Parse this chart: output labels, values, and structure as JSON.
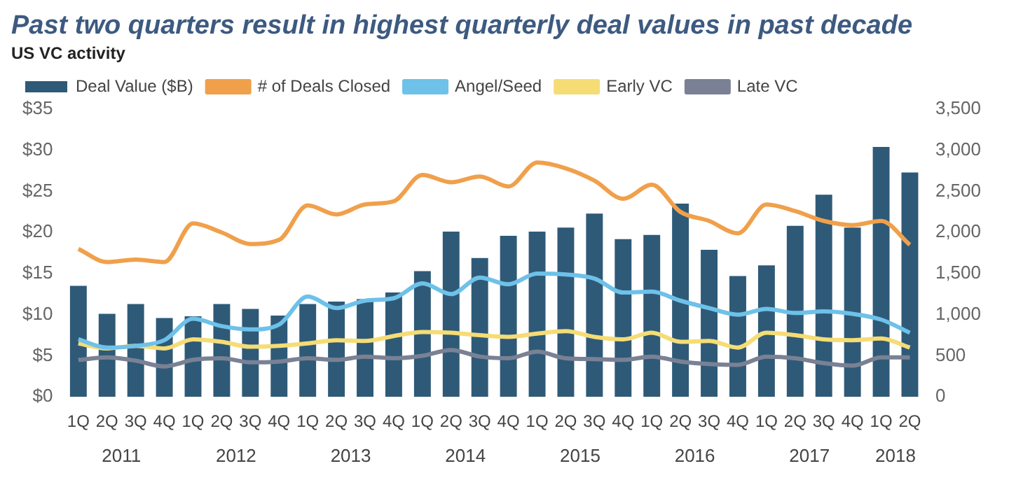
{
  "chart_data": {
    "type": "bar",
    "title": "Past two quarters result in highest quarterly deal values in past decade",
    "subtitle": "US VC activity",
    "categories": [
      "1Q",
      "2Q",
      "3Q",
      "4Q",
      "1Q",
      "2Q",
      "3Q",
      "4Q",
      "1Q",
      "2Q",
      "3Q",
      "4Q",
      "1Q",
      "2Q",
      "3Q",
      "4Q",
      "1Q",
      "2Q",
      "3Q",
      "4Q",
      "1Q",
      "2Q",
      "3Q",
      "4Q",
      "1Q",
      "2Q",
      "3Q",
      "4Q",
      "1Q",
      "2Q"
    ],
    "annotations": [
      "2011",
      "2012",
      "2013",
      "2014",
      "2015",
      "2016",
      "2017",
      "2018"
    ],
    "series": [
      {
        "name": "Deal Value ($B)",
        "color": "#2e5a78",
        "values": [
          13.5,
          10.1,
          11.3,
          9.6,
          9.8,
          11.3,
          10.7,
          9.9,
          11.3,
          11.6,
          11.9,
          12.7,
          15.3,
          20.1,
          16.9,
          19.6,
          20.1,
          20.6,
          22.3,
          19.2,
          19.7,
          23.5,
          17.9,
          14.7,
          16.0,
          20.8,
          24.6,
          20.6,
          30.4,
          27.3
        ]
      },
      {
        "name": "# of Deals Closed",
        "type": "line",
        "axis": "y2",
        "color": "#f0a04b",
        "values": [
          1800,
          1640,
          1670,
          1640,
          2110,
          2000,
          1860,
          1910,
          2330,
          2220,
          2340,
          2380,
          2700,
          2610,
          2680,
          2560,
          2850,
          2780,
          2630,
          2410,
          2580,
          2250,
          2140,
          1990,
          2340,
          2260,
          2140,
          2090,
          2140,
          1850
        ]
      },
      {
        "name": "Angel/Seed",
        "type": "line",
        "axis": "y2",
        "color": "#6ec1e8",
        "values": [
          700,
          600,
          620,
          690,
          950,
          860,
          820,
          880,
          1220,
          1080,
          1170,
          1200,
          1380,
          1250,
          1450,
          1370,
          1500,
          1490,
          1440,
          1270,
          1280,
          1170,
          1080,
          1000,
          1070,
          1020,
          1040,
          1010,
          940,
          780
        ]
      },
      {
        "name": "Early VC",
        "type": "line",
        "axis": "y2",
        "color": "#f5dc74",
        "values": [
          650,
          590,
          620,
          590,
          700,
          670,
          610,
          620,
          650,
          690,
          680,
          740,
          790,
          780,
          750,
          730,
          770,
          800,
          730,
          700,
          780,
          670,
          680,
          600,
          780,
          750,
          700,
          690,
          710,
          600
        ]
      },
      {
        "name": "Late VC",
        "type": "line",
        "axis": "y2",
        "color": "#7a8194",
        "values": [
          450,
          480,
          440,
          370,
          450,
          470,
          420,
          430,
          470,
          450,
          490,
          470,
          500,
          570,
          490,
          470,
          550,
          470,
          460,
          450,
          490,
          430,
          400,
          390,
          490,
          470,
          410,
          380,
          480,
          480
        ]
      }
    ],
    "ylim": [
      0,
      35
    ],
    "yticks": [
      {
        "value": 0,
        "label": "$0"
      },
      {
        "value": 5,
        "label": "$5"
      },
      {
        "value": 10,
        "label": "$10"
      },
      {
        "value": 15,
        "label": "$15"
      },
      {
        "value": 20,
        "label": "$20"
      },
      {
        "value": 25,
        "label": "$25"
      },
      {
        "value": 30,
        "label": "$30"
      },
      {
        "value": 35,
        "label": "$35"
      }
    ],
    "y2lim": [
      0,
      3500
    ],
    "y2ticks": [
      0,
      500,
      {
        "value": 1000,
        "label": "1,000"
      },
      {
        "value": 1500,
        "label": "1,500"
      },
      {
        "value": 2000,
        "label": "2,000"
      },
      {
        "value": 2500,
        "label": "2,500"
      },
      {
        "value": 3000,
        "label": "3,000"
      },
      {
        "value": 3500,
        "label": "3,500"
      }
    ],
    "grid": false,
    "legend": "top left",
    "marker": "none"
  }
}
